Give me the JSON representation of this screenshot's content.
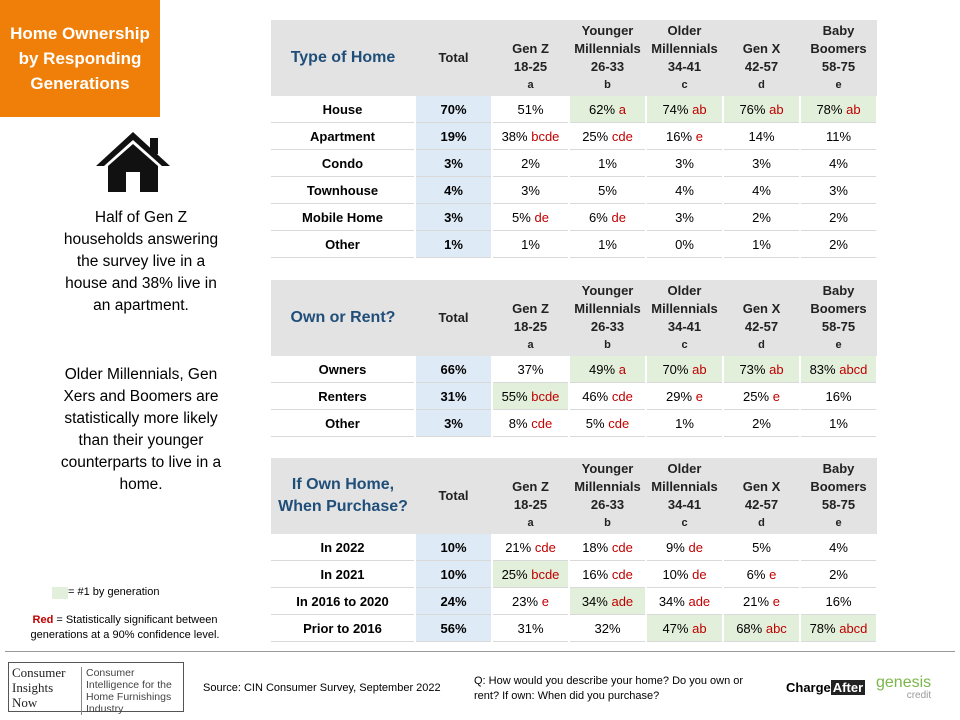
{
  "sidebar": {
    "title": "Home Ownership by Responding Generations",
    "paragraphs": [
      "Half of Gen Z households answering the survey live in a house and 38% live in an apartment.",
      "Older Millennials, Gen Xers and Boomers are statistically more likely than their younger counterparts to live in a home."
    ],
    "legend_top": "= #1  by generation",
    "legend_red_word": "Red",
    "legend_red_text": "= Statistically significant between generations at a 90% confidence level."
  },
  "tables": [
    {
      "title": "Type of Home",
      "columns": [
        {
          "name": "Total"
        },
        {
          "name": "Gen Z",
          "ages": "18-25",
          "letter": "a"
        },
        {
          "name": "Younger Millennials",
          "ages": "26-33",
          "letter": "b"
        },
        {
          "name": "Older Millennials",
          "ages": "34-41",
          "letter": "c"
        },
        {
          "name": "Gen X",
          "ages": "42-57",
          "letter": "d"
        },
        {
          "name": "Baby Boomers",
          "ages": "58-75",
          "letter": "e"
        }
      ],
      "rows": [
        {
          "label": "House",
          "cells": [
            {
              "value": "70%"
            },
            {
              "value": "51%"
            },
            {
              "value": "62%",
              "sig": "a",
              "top": true
            },
            {
              "value": "74%",
              "sig": "ab",
              "top": true
            },
            {
              "value": "76%",
              "sig": "ab",
              "top": true
            },
            {
              "value": "78%",
              "sig": "ab",
              "top": true
            }
          ]
        },
        {
          "label": "Apartment",
          "cells": [
            {
              "value": "19%"
            },
            {
              "value": "38%",
              "sig": "bcde"
            },
            {
              "value": "25%",
              "sig": "cde"
            },
            {
              "value": "16%",
              "sig": "e"
            },
            {
              "value": "14%"
            },
            {
              "value": "11%"
            }
          ]
        },
        {
          "label": "Condo",
          "cells": [
            {
              "value": "3%"
            },
            {
              "value": "2%"
            },
            {
              "value": "1%"
            },
            {
              "value": "3%"
            },
            {
              "value": "3%"
            },
            {
              "value": "4%"
            }
          ]
        },
        {
          "label": "Townhouse",
          "cells": [
            {
              "value": "4%"
            },
            {
              "value": "3%"
            },
            {
              "value": "5%"
            },
            {
              "value": "4%"
            },
            {
              "value": "4%"
            },
            {
              "value": "3%"
            }
          ]
        },
        {
          "label": "Mobile Home",
          "cells": [
            {
              "value": "3%"
            },
            {
              "value": "5%",
              "sig": "de"
            },
            {
              "value": "6%",
              "sig": "de"
            },
            {
              "value": "3%"
            },
            {
              "value": "2%"
            },
            {
              "value": "2%"
            }
          ]
        },
        {
          "label": "Other",
          "cells": [
            {
              "value": "1%"
            },
            {
              "value": "1%"
            },
            {
              "value": "1%"
            },
            {
              "value": "0%"
            },
            {
              "value": "1%"
            },
            {
              "value": "2%"
            }
          ]
        }
      ]
    },
    {
      "title": "Own or Rent?",
      "columns": [
        {
          "name": "Total"
        },
        {
          "name": "Gen Z",
          "ages": "18-25",
          "letter": "a"
        },
        {
          "name": "Younger Millennials",
          "ages": "26-33",
          "letter": "b"
        },
        {
          "name": "Older Millennials",
          "ages": "34-41",
          "letter": "c"
        },
        {
          "name": "Gen X",
          "ages": "42-57",
          "letter": "d"
        },
        {
          "name": "Baby Boomers",
          "ages": "58-75",
          "letter": "e"
        }
      ],
      "rows": [
        {
          "label": "Owners",
          "cells": [
            {
              "value": "66%"
            },
            {
              "value": "37%"
            },
            {
              "value": "49%",
              "sig": "a",
              "top": true
            },
            {
              "value": "70%",
              "sig": "ab",
              "top": true
            },
            {
              "value": "73%",
              "sig": "ab",
              "top": true
            },
            {
              "value": "83%",
              "sig": "abcd",
              "top": true
            }
          ]
        },
        {
          "label": "Renters",
          "cells": [
            {
              "value": "31%"
            },
            {
              "value": "55%",
              "sig": "bcde",
              "top": true
            },
            {
              "value": "46%",
              "sig": "cde"
            },
            {
              "value": "29%",
              "sig": "e"
            },
            {
              "value": "25%",
              "sig": "e"
            },
            {
              "value": "16%"
            }
          ]
        },
        {
          "label": "Other",
          "cells": [
            {
              "value": "3%"
            },
            {
              "value": "8%",
              "sig": "cde"
            },
            {
              "value": "5%",
              "sig": "cde"
            },
            {
              "value": "1%"
            },
            {
              "value": "2%"
            },
            {
              "value": "1%"
            }
          ]
        }
      ]
    },
    {
      "title": "If Own Home, When Purchase?",
      "columns": [
        {
          "name": "Total"
        },
        {
          "name": "Gen Z",
          "ages": "18-25",
          "letter": "a"
        },
        {
          "name": "Younger Millennials",
          "ages": "26-33",
          "letter": "b"
        },
        {
          "name": "Older Millennials",
          "ages": "34-41",
          "letter": "c"
        },
        {
          "name": "Gen X",
          "ages": "42-57",
          "letter": "d"
        },
        {
          "name": "Baby Boomers",
          "ages": "58-75",
          "letter": "e"
        }
      ],
      "rows": [
        {
          "label": "In 2022",
          "cells": [
            {
              "value": "10%"
            },
            {
              "value": "21%",
              "sig": "cde"
            },
            {
              "value": "18%",
              "sig": "cde"
            },
            {
              "value": "9%",
              "sig": "de"
            },
            {
              "value": "5%"
            },
            {
              "value": "4%"
            }
          ]
        },
        {
          "label": "In 2021",
          "cells": [
            {
              "value": "10%"
            },
            {
              "value": "25%",
              "sig": "bcde",
              "top": true
            },
            {
              "value": "16%",
              "sig": "cde"
            },
            {
              "value": "10%",
              "sig": "de"
            },
            {
              "value": "6%",
              "sig": "e"
            },
            {
              "value": "2%"
            }
          ]
        },
        {
          "label": "In 2016 to 2020",
          "cells": [
            {
              "value": "24%"
            },
            {
              "value": "23%",
              "sig": "e"
            },
            {
              "value": "34%",
              "sig": "ade",
              "top": true
            },
            {
              "value": "34%",
              "sig": "ade"
            },
            {
              "value": "21%",
              "sig": "e"
            },
            {
              "value": "16%"
            }
          ]
        },
        {
          "label": "Prior to 2016",
          "cells": [
            {
              "value": "56%"
            },
            {
              "value": "31%"
            },
            {
              "value": "32%"
            },
            {
              "value": "47%",
              "sig": "ab",
              "top": true
            },
            {
              "value": "68%",
              "sig": "abc",
              "top": true
            },
            {
              "value": "78%",
              "sig": "abcd",
              "top": true
            }
          ]
        }
      ]
    }
  ],
  "footer": {
    "logo": "Consumer Insights Now",
    "tagline": "Consumer Intelligence for the Home Furnishings Industry",
    "source": "Source: CIN Consumer Survey, September  2022",
    "question": "Q: How would you describe your home?  Do you own or rent?  If own: When did you purchase?",
    "partner1_a": "Charge",
    "partner1_b": "After",
    "partner2_a": "genesis",
    "partner2_b": "credit"
  }
}
